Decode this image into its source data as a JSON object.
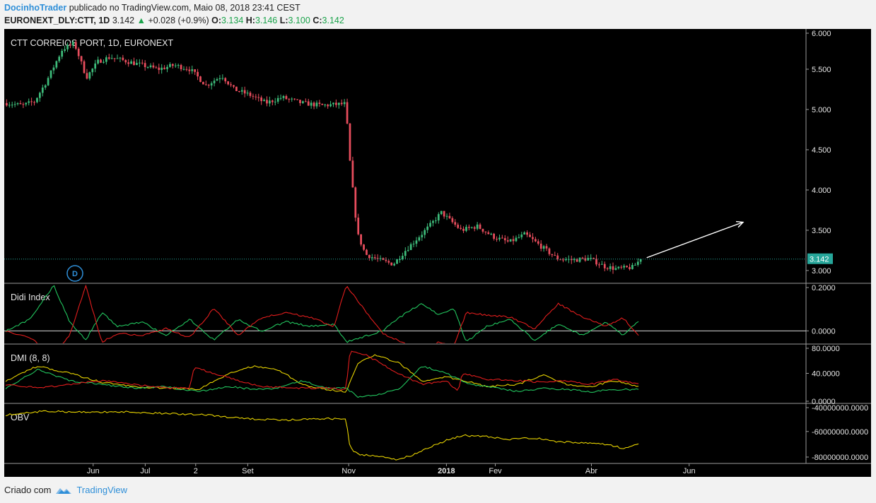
{
  "header": {
    "author": "DocinhoTrader",
    "published_text": "publicado no TradingView.com, Maio 08, 2018 23:41 CEST",
    "symbol": "EURONEXT_DLY:CTT, 1D",
    "last": "3.142",
    "change": "+0.028 (+0.9%)",
    "o_label": "O:",
    "o_value": "3.134",
    "h_label": "H:",
    "h_value": "3.146",
    "l_label": "L:",
    "l_value": "3.100",
    "c_label": "C:",
    "c_value": "3.142"
  },
  "footer": {
    "created_with": "Criado com",
    "brand": "TradingView"
  },
  "colors": {
    "up": "#26a69a",
    "up_candle": "#3dbb7a",
    "down": "#ef5350",
    "down_candle": "#e84d5d",
    "didi_green": "#22c55e",
    "didi_red": "#e11d1d",
    "dmi_yellow": "#e6d200",
    "obv_yellow": "#e6d200",
    "price_badge": "#26a69a"
  },
  "chart_data": [
    {
      "type": "candlestick",
      "title": "CTT CORREIOS PORT, 1D, EURONEXT",
      "ylim": [
        2.85,
        6.0
      ],
      "y_ticks": [
        "6.000",
        "5.500",
        "5.000",
        "4.500",
        "4.000",
        "3.500",
        "3.000"
      ],
      "y_tick_values": [
        6.0,
        5.5,
        5.0,
        4.5,
        4.0,
        3.5,
        3.0
      ],
      "x_ticks": [
        "Jun",
        "Jul",
        "2",
        "Set",
        "Nov",
        "2018",
        "Fev",
        "Abr",
        "Jun"
      ],
      "x_tick_pos": [
        0.111,
        0.176,
        0.239,
        0.304,
        0.43,
        0.552,
        0.613,
        0.733,
        0.855
      ],
      "last_price": 3.142,
      "last_price_label": "3.142",
      "marker_label": "D",
      "anchors": [
        [
          0,
          5.08
        ],
        [
          0.02,
          5.05
        ],
        [
          0.035,
          5.1
        ],
        [
          0.05,
          5.35
        ],
        [
          0.07,
          5.75
        ],
        [
          0.085,
          5.82
        ],
        [
          0.1,
          5.4
        ],
        [
          0.115,
          5.6
        ],
        [
          0.13,
          5.65
        ],
        [
          0.15,
          5.6
        ],
        [
          0.17,
          5.55
        ],
        [
          0.19,
          5.5
        ],
        [
          0.21,
          5.55
        ],
        [
          0.23,
          5.5
        ],
        [
          0.25,
          5.3
        ],
        [
          0.27,
          5.42
        ],
        [
          0.285,
          5.25
        ],
        [
          0.305,
          5.18
        ],
        [
          0.325,
          5.08
        ],
        [
          0.345,
          5.15
        ],
        [
          0.37,
          5.08
        ],
        [
          0.395,
          5.05
        ],
        [
          0.425,
          5.07
        ],
        [
          0.43,
          4.4
        ],
        [
          0.435,
          3.9
        ],
        [
          0.44,
          3.45
        ],
        [
          0.45,
          3.2
        ],
        [
          0.47,
          3.12
        ],
        [
          0.485,
          3.08
        ],
        [
          0.5,
          3.25
        ],
        [
          0.515,
          3.4
        ],
        [
          0.53,
          3.55
        ],
        [
          0.545,
          3.72
        ],
        [
          0.57,
          3.5
        ],
        [
          0.59,
          3.55
        ],
        [
          0.61,
          3.42
        ],
        [
          0.63,
          3.35
        ],
        [
          0.65,
          3.45
        ],
        [
          0.67,
          3.3
        ],
        [
          0.69,
          3.15
        ],
        [
          0.71,
          3.13
        ],
        [
          0.73,
          3.15
        ],
        [
          0.75,
          3.05
        ],
        [
          0.765,
          3.02
        ],
        [
          0.785,
          3.04
        ],
        [
          0.795,
          3.142
        ]
      ],
      "candles_count": 230,
      "seed": 7
    },
    {
      "type": "line",
      "title": "Didi Index",
      "ylim": [
        -0.055,
        0.21
      ],
      "y_ticks": [
        "0.2000",
        "0.0000"
      ],
      "y_tick_values": [
        0.2,
        0.0
      ],
      "series": [
        {
          "color": "#22c55e",
          "anchors": [
            [
              0,
              0.0
            ],
            [
              0.03,
              0.05
            ],
            [
              0.06,
              0.2
            ],
            [
              0.08,
              0.04
            ],
            [
              0.1,
              -0.04
            ],
            [
              0.12,
              0.08
            ],
            [
              0.14,
              0.02
            ],
            [
              0.17,
              0.04
            ],
            [
              0.2,
              -0.02
            ],
            [
              0.23,
              0.05
            ],
            [
              0.26,
              -0.04
            ],
            [
              0.29,
              0.05
            ],
            [
              0.32,
              0.0
            ],
            [
              0.35,
              0.04
            ],
            [
              0.38,
              0.02
            ],
            [
              0.41,
              0.03
            ],
            [
              0.425,
              -0.05
            ],
            [
              0.47,
              0.0
            ],
            [
              0.5,
              0.08
            ],
            [
              0.52,
              0.12
            ],
            [
              0.54,
              0.07
            ],
            [
              0.56,
              0.1
            ],
            [
              0.575,
              -0.05
            ],
            [
              0.6,
              0.02
            ],
            [
              0.63,
              0.05
            ],
            [
              0.66,
              -0.04
            ],
            [
              0.69,
              0.03
            ],
            [
              0.72,
              -0.02
            ],
            [
              0.75,
              0.04
            ],
            [
              0.77,
              -0.02
            ],
            [
              0.79,
              0.04
            ]
          ]
        },
        {
          "color": "#e11d1d",
          "anchors": [
            [
              0,
              0.0
            ],
            [
              0.03,
              -0.03
            ],
            [
              0.06,
              -0.1
            ],
            [
              0.08,
              -0.02
            ],
            [
              0.1,
              0.2
            ],
            [
              0.12,
              -0.05
            ],
            [
              0.14,
              -0.01
            ],
            [
              0.17,
              -0.02
            ],
            [
              0.2,
              0.01
            ],
            [
              0.23,
              -0.03
            ],
            [
              0.26,
              0.1
            ],
            [
              0.29,
              -0.02
            ],
            [
              0.32,
              0.06
            ],
            [
              0.35,
              0.08
            ],
            [
              0.38,
              0.06
            ],
            [
              0.41,
              0.02
            ],
            [
              0.425,
              0.2
            ],
            [
              0.47,
              -0.01
            ],
            [
              0.5,
              -0.06
            ],
            [
              0.52,
              -0.1
            ],
            [
              0.54,
              -0.05
            ],
            [
              0.56,
              -0.06
            ],
            [
              0.575,
              0.08
            ],
            [
              0.6,
              0.07
            ],
            [
              0.63,
              0.06
            ],
            [
              0.66,
              0.01
            ],
            [
              0.69,
              0.12
            ],
            [
              0.72,
              0.06
            ],
            [
              0.75,
              0.02
            ],
            [
              0.77,
              0.06
            ],
            [
              0.79,
              -0.02
            ]
          ]
        }
      ]
    },
    {
      "type": "line",
      "title": "DMI (8, 8)",
      "ylim": [
        0,
        80
      ],
      "y_ticks": [
        "80.0000",
        "40.0000",
        "0.0000"
      ],
      "y_tick_values": [
        80,
        40,
        0
      ],
      "series": [
        {
          "name": "",
          "color": "#e6d200",
          "anchors": [
            [
              0,
              30
            ],
            [
              0.04,
              50
            ],
            [
              0.08,
              40
            ],
            [
              0.12,
              28
            ],
            [
              0.16,
              22
            ],
            [
              0.2,
              20
            ],
            [
              0.24,
              18
            ],
            [
              0.28,
              40
            ],
            [
              0.31,
              50
            ],
            [
              0.34,
              45
            ],
            [
              0.37,
              25
            ],
            [
              0.4,
              18
            ],
            [
              0.425,
              15
            ],
            [
              0.44,
              55
            ],
            [
              0.46,
              65
            ],
            [
              0.49,
              55
            ],
            [
              0.52,
              30
            ],
            [
              0.55,
              35
            ],
            [
              0.58,
              28
            ],
            [
              0.6,
              22
            ],
            [
              0.64,
              25
            ],
            [
              0.67,
              38
            ],
            [
              0.7,
              25
            ],
            [
              0.73,
              22
            ],
            [
              0.76,
              30
            ],
            [
              0.79,
              22
            ]
          ]
        },
        {
          "name": "",
          "color": "#22c55e",
          "anchors": [
            [
              0,
              20
            ],
            [
              0.04,
              45
            ],
            [
              0.08,
              30
            ],
            [
              0.12,
              25
            ],
            [
              0.16,
              20
            ],
            [
              0.2,
              22
            ],
            [
              0.24,
              15
            ],
            [
              0.28,
              22
            ],
            [
              0.31,
              18
            ],
            [
              0.34,
              20
            ],
            [
              0.37,
              30
            ],
            [
              0.4,
              20
            ],
            [
              0.425,
              20
            ],
            [
              0.44,
              8
            ],
            [
              0.46,
              10
            ],
            [
              0.49,
              18
            ],
            [
              0.52,
              50
            ],
            [
              0.55,
              40
            ],
            [
              0.58,
              25
            ],
            [
              0.6,
              22
            ],
            [
              0.64,
              15
            ],
            [
              0.67,
              20
            ],
            [
              0.7,
              18
            ],
            [
              0.73,
              15
            ],
            [
              0.76,
              18
            ],
            [
              0.79,
              18
            ]
          ]
        },
        {
          "name": "",
          "color": "#e11d1d",
          "anchors": [
            [
              0,
              25
            ],
            [
              0.04,
              20
            ],
            [
              0.08,
              25
            ],
            [
              0.12,
              30
            ],
            [
              0.16,
              25
            ],
            [
              0.2,
              20
            ],
            [
              0.23,
              20
            ],
            [
              0.235,
              48
            ],
            [
              0.26,
              40
            ],
            [
              0.29,
              30
            ],
            [
              0.32,
              22
            ],
            [
              0.36,
              20
            ],
            [
              0.4,
              20
            ],
            [
              0.425,
              18
            ],
            [
              0.43,
              72
            ],
            [
              0.45,
              65
            ],
            [
              0.49,
              40
            ],
            [
              0.52,
              25
            ],
            [
              0.55,
              30
            ],
            [
              0.565,
              15
            ],
            [
              0.57,
              40
            ],
            [
              0.6,
              32
            ],
            [
              0.64,
              30
            ],
            [
              0.67,
              28
            ],
            [
              0.7,
              30
            ],
            [
              0.73,
              25
            ],
            [
              0.76,
              32
            ],
            [
              0.79,
              26
            ]
          ]
        }
      ]
    },
    {
      "type": "line",
      "title": "OBV",
      "ylim": [
        -85000000,
        -38000000
      ],
      "y_ticks": [
        "-40000000.0000",
        "-60000000.0000",
        "-80000000.0000"
      ],
      "y_tick_values": [
        -40000000,
        -60000000,
        -80000000
      ],
      "series": [
        {
          "name": "",
          "color": "#e6d200",
          "anchors": [
            [
              0,
              -47000000
            ],
            [
              0.05,
              -44000000
            ],
            [
              0.1,
              -45000000
            ],
            [
              0.15,
              -44500000
            ],
            [
              0.2,
              -46000000
            ],
            [
              0.25,
              -47000000
            ],
            [
              0.3,
              -50000000
            ],
            [
              0.35,
              -51000000
            ],
            [
              0.4,
              -50000000
            ],
            [
              0.425,
              -50000000
            ],
            [
              0.43,
              -73000000
            ],
            [
              0.44,
              -78000000
            ],
            [
              0.47,
              -80000000
            ],
            [
              0.49,
              -82000000
            ],
            [
              0.51,
              -78000000
            ],
            [
              0.53,
              -72000000
            ],
            [
              0.55,
              -67000000
            ],
            [
              0.57,
              -63000000
            ],
            [
              0.6,
              -64000000
            ],
            [
              0.63,
              -66000000
            ],
            [
              0.66,
              -65000000
            ],
            [
              0.69,
              -68000000
            ],
            [
              0.72,
              -69000000
            ],
            [
              0.75,
              -70000000
            ],
            [
              0.77,
              -73000000
            ],
            [
              0.79,
              -70000000
            ]
          ]
        }
      ]
    }
  ]
}
